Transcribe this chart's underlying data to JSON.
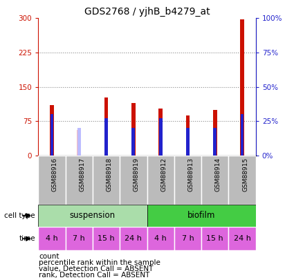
{
  "title": "GDS2768 / yjhB_b4279_at",
  "samples": [
    "GSM88916",
    "GSM88917",
    "GSM88918",
    "GSM88919",
    "GSM88912",
    "GSM88913",
    "GSM88914",
    "GSM88915"
  ],
  "count_values": [
    110,
    0,
    127,
    115,
    103,
    88,
    100,
    297
  ],
  "rank_values": [
    30,
    0,
    27,
    20,
    27,
    20,
    20,
    30
  ],
  "absent_count_values": [
    0,
    55,
    0,
    0,
    0,
    0,
    0,
    0
  ],
  "absent_rank_values": [
    0,
    20,
    0,
    0,
    0,
    0,
    0,
    0
  ],
  "ylim_left": [
    0,
    300
  ],
  "ylim_right": [
    0,
    100
  ],
  "yticks_left": [
    0,
    75,
    150,
    225,
    300
  ],
  "yticks_right": [
    0,
    25,
    50,
    75,
    100
  ],
  "count_color": "#cc1100",
  "rank_color": "#2222cc",
  "absent_count_color": "#ffbbbb",
  "absent_rank_color": "#bbbbff",
  "suspension_color": "#aaddaa",
  "biofilm_color": "#44cc44",
  "time_color": "#dd66dd",
  "time_labels": [
    "4 h",
    "7 h",
    "15 h",
    "24 h",
    "4 h",
    "7 h",
    "15 h",
    "24 h"
  ],
  "xtick_bg": "#bbbbbb",
  "bar_width": 0.15,
  "rank_bar_width": 0.12
}
